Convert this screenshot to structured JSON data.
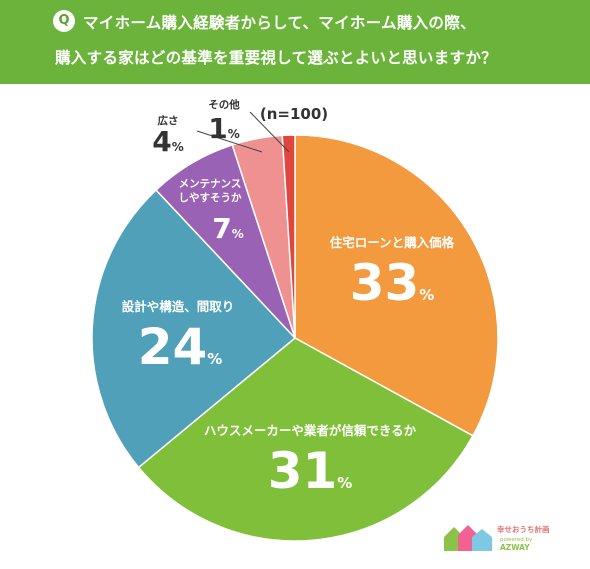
{
  "question": {
    "badge": "Q",
    "line1": "マイホーム購入経験者からして、マイホーム購入の際、",
    "line2": "購入する家はどの基準を重要視して選ぶとよいと思いますか？"
  },
  "sample_note": "(n=100)",
  "colors": {
    "header": "#6bb33a",
    "loan": "#f29a3d",
    "maker": "#7fbf3a",
    "design": "#4fa0b8",
    "maintenance": "#9a62b5",
    "size": "#ef9191",
    "other": "#e0463c"
  },
  "chart_data": {
    "type": "pie",
    "title": "",
    "slices": [
      {
        "label": "住宅ローンと購入価格",
        "value": 33,
        "display": "33",
        "unit": "%",
        "color": "#f29a3d"
      },
      {
        "label": "ハウスメーカーや業者が信頼できるか",
        "value": 31,
        "display": "31",
        "unit": "%",
        "color": "#7fbf3a"
      },
      {
        "label": "設計や構造、間取り",
        "value": 24,
        "display": "24",
        "unit": "%",
        "color": "#4fa0b8"
      },
      {
        "label": "メンテナンス しやすそうか",
        "value": 7,
        "display": "7",
        "unit": "%",
        "color": "#9a62b5"
      },
      {
        "label": "広さ",
        "value": 4,
        "display": "4",
        "unit": "%",
        "color": "#ef9191"
      },
      {
        "label": "その他",
        "value": 1,
        "display": "1",
        "unit": "%",
        "color": "#e0463c"
      }
    ]
  },
  "logo": {
    "line1": "幸せおうち計画",
    "line2": "powered by",
    "line3": "AZWAY"
  }
}
